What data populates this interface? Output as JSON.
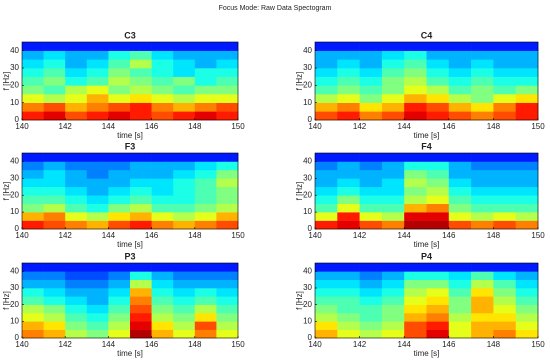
{
  "title": "Focus Mode: Raw Data Spectogram",
  "chart_data": [
    {
      "type": "heatmap",
      "title": "C3",
      "xlabel": "time [s]",
      "ylabel": "f [Hz]",
      "colormap": "jet",
      "xlim": [
        140,
        150
      ],
      "ylim": [
        0,
        45
      ],
      "xticks": [
        140,
        142,
        144,
        146,
        148,
        150
      ],
      "yticks": [
        0,
        10,
        20,
        30,
        40
      ],
      "x": [
        140.5,
        141.5,
        142.5,
        143.5,
        144.5,
        145.5,
        146.5,
        147.5,
        148.5,
        149.5
      ],
      "y": [
        2.5,
        7.5,
        12.5,
        17.5,
        22.5,
        27.5,
        32.5,
        37.5,
        42.5
      ],
      "values": [
        [
          0.85,
          0.9,
          0.8,
          0.85,
          0.9,
          0.85,
          0.8,
          0.85,
          0.9,
          0.85
        ],
        [
          0.75,
          0.8,
          0.7,
          0.75,
          0.8,
          0.85,
          0.75,
          0.7,
          0.75,
          0.8
        ],
        [
          0.6,
          0.55,
          0.6,
          0.7,
          0.6,
          0.65,
          0.6,
          0.55,
          0.6,
          0.6
        ],
        [
          0.5,
          0.45,
          0.55,
          0.6,
          0.5,
          0.55,
          0.5,
          0.45,
          0.5,
          0.5
        ],
        [
          0.45,
          0.5,
          0.4,
          0.45,
          0.55,
          0.5,
          0.45,
          0.5,
          0.4,
          0.45
        ],
        [
          0.4,
          0.45,
          0.35,
          0.4,
          0.5,
          0.45,
          0.4,
          0.35,
          0.4,
          0.4
        ],
        [
          0.35,
          0.4,
          0.3,
          0.35,
          0.45,
          0.55,
          0.4,
          0.35,
          0.3,
          0.35
        ],
        [
          0.3,
          0.35,
          0.3,
          0.3,
          0.4,
          0.45,
          0.35,
          0.3,
          0.3,
          0.3
        ],
        [
          0.15,
          0.15,
          0.15,
          0.15,
          0.15,
          0.15,
          0.15,
          0.15,
          0.15,
          0.15
        ]
      ]
    },
    {
      "type": "heatmap",
      "title": "C4",
      "xlabel": "time [s]",
      "ylabel": "f [Hz]",
      "colormap": "jet",
      "xlim": [
        140,
        150
      ],
      "ylim": [
        0,
        45
      ],
      "xticks": [
        140,
        142,
        144,
        146,
        148,
        150
      ],
      "yticks": [
        0,
        10,
        20,
        30,
        40
      ],
      "x": [
        140.5,
        141.5,
        142.5,
        143.5,
        144.5,
        145.5,
        146.5,
        147.5,
        148.5,
        149.5
      ],
      "y": [
        2.5,
        7.5,
        12.5,
        17.5,
        22.5,
        27.5,
        32.5,
        37.5,
        42.5
      ],
      "values": [
        [
          0.8,
          0.85,
          0.75,
          0.8,
          0.9,
          0.85,
          0.8,
          0.75,
          0.8,
          0.85
        ],
        [
          0.7,
          0.75,
          0.65,
          0.7,
          0.85,
          0.8,
          0.7,
          0.65,
          0.75,
          0.85
        ],
        [
          0.55,
          0.6,
          0.5,
          0.6,
          0.7,
          0.65,
          0.55,
          0.5,
          0.6,
          0.65
        ],
        [
          0.45,
          0.5,
          0.45,
          0.5,
          0.6,
          0.55,
          0.45,
          0.5,
          0.45,
          0.5
        ],
        [
          0.4,
          0.45,
          0.4,
          0.5,
          0.55,
          0.45,
          0.4,
          0.45,
          0.4,
          0.4
        ],
        [
          0.35,
          0.4,
          0.35,
          0.45,
          0.5,
          0.4,
          0.35,
          0.4,
          0.35,
          0.35
        ],
        [
          0.3,
          0.35,
          0.3,
          0.4,
          0.45,
          0.35,
          0.3,
          0.35,
          0.3,
          0.3
        ],
        [
          0.3,
          0.3,
          0.3,
          0.35,
          0.4,
          0.3,
          0.3,
          0.3,
          0.3,
          0.3
        ],
        [
          0.15,
          0.15,
          0.15,
          0.15,
          0.15,
          0.15,
          0.15,
          0.15,
          0.15,
          0.15
        ]
      ]
    },
    {
      "type": "heatmap",
      "title": "F3",
      "xlabel": "time [s]",
      "ylabel": "f [Hz]",
      "colormap": "jet",
      "xlim": [
        140,
        150
      ],
      "ylim": [
        0,
        45
      ],
      "xticks": [
        140,
        142,
        144,
        146,
        148,
        150
      ],
      "yticks": [
        0,
        10,
        20,
        30,
        40
      ],
      "x": [
        140.5,
        141.5,
        142.5,
        143.5,
        144.5,
        145.5,
        146.5,
        147.5,
        148.5,
        149.5
      ],
      "y": [
        2.5,
        7.5,
        12.5,
        17.5,
        22.5,
        27.5,
        32.5,
        37.5,
        42.5
      ],
      "values": [
        [
          0.85,
          0.8,
          0.75,
          0.7,
          0.8,
          0.85,
          0.75,
          0.7,
          0.75,
          0.8
        ],
        [
          0.7,
          0.75,
          0.6,
          0.55,
          0.65,
          0.7,
          0.6,
          0.55,
          0.6,
          0.7
        ],
        [
          0.5,
          0.55,
          0.45,
          0.4,
          0.5,
          0.55,
          0.45,
          0.45,
          0.5,
          0.55
        ],
        [
          0.45,
          0.45,
          0.4,
          0.35,
          0.4,
          0.45,
          0.4,
          0.4,
          0.45,
          0.5
        ],
        [
          0.4,
          0.4,
          0.35,
          0.3,
          0.35,
          0.4,
          0.35,
          0.4,
          0.45,
          0.5
        ],
        [
          0.35,
          0.35,
          0.3,
          0.3,
          0.3,
          0.35,
          0.35,
          0.4,
          0.45,
          0.55
        ],
        [
          0.3,
          0.35,
          0.3,
          0.25,
          0.3,
          0.3,
          0.3,
          0.35,
          0.4,
          0.5
        ],
        [
          0.25,
          0.3,
          0.25,
          0.25,
          0.25,
          0.3,
          0.3,
          0.3,
          0.35,
          0.4
        ],
        [
          0.15,
          0.15,
          0.15,
          0.15,
          0.15,
          0.15,
          0.15,
          0.15,
          0.15,
          0.15
        ]
      ]
    },
    {
      "type": "heatmap",
      "title": "F4",
      "xlabel": "time [s]",
      "ylabel": "f [Hz]",
      "colormap": "jet",
      "xlim": [
        140,
        150
      ],
      "ylim": [
        0,
        45
      ],
      "xticks": [
        140,
        142,
        144,
        146,
        148,
        150
      ],
      "yticks": [
        0,
        10,
        20,
        30,
        40
      ],
      "x": [
        140.5,
        141.5,
        142.5,
        143.5,
        144.5,
        145.5,
        146.5,
        147.5,
        148.5,
        149.5
      ],
      "y": [
        2.5,
        7.5,
        12.5,
        17.5,
        22.5,
        27.5,
        32.5,
        37.5,
        42.5
      ],
      "values": [
        [
          0.85,
          0.9,
          0.8,
          0.75,
          0.95,
          0.95,
          0.8,
          0.75,
          0.8,
          0.75
        ],
        [
          0.6,
          0.85,
          0.6,
          0.55,
          0.9,
          0.9,
          0.6,
          0.55,
          0.6,
          0.55
        ],
        [
          0.45,
          0.6,
          0.45,
          0.45,
          0.7,
          0.75,
          0.5,
          0.45,
          0.45,
          0.45
        ],
        [
          0.4,
          0.5,
          0.4,
          0.4,
          0.55,
          0.6,
          0.45,
          0.4,
          0.4,
          0.4
        ],
        [
          0.35,
          0.4,
          0.35,
          0.35,
          0.5,
          0.55,
          0.4,
          0.35,
          0.35,
          0.35
        ],
        [
          0.3,
          0.35,
          0.3,
          0.35,
          0.55,
          0.5,
          0.35,
          0.3,
          0.3,
          0.3
        ],
        [
          0.3,
          0.3,
          0.3,
          0.3,
          0.5,
          0.45,
          0.3,
          0.3,
          0.3,
          0.3
        ],
        [
          0.25,
          0.3,
          0.25,
          0.3,
          0.4,
          0.4,
          0.3,
          0.25,
          0.25,
          0.25
        ],
        [
          0.15,
          0.15,
          0.15,
          0.15,
          0.15,
          0.15,
          0.15,
          0.15,
          0.15,
          0.15
        ]
      ]
    },
    {
      "type": "heatmap",
      "title": "P3",
      "xlabel": "time [s]",
      "ylabel": "f [Hz]",
      "colormap": "jet",
      "xlim": [
        140,
        150
      ],
      "ylim": [
        0,
        45
      ],
      "xticks": [
        140,
        142,
        144,
        146,
        148,
        150
      ],
      "yticks": [
        0,
        10,
        20,
        30,
        40
      ],
      "x": [
        140.5,
        141.5,
        142.5,
        143.5,
        144.5,
        145.5,
        146.5,
        147.5,
        148.5,
        149.5
      ],
      "y": [
        2.5,
        7.5,
        12.5,
        17.5,
        22.5,
        27.5,
        32.5,
        37.5,
        42.5
      ],
      "values": [
        [
          0.75,
          0.7,
          0.55,
          0.5,
          0.6,
          0.95,
          0.7,
          0.6,
          0.75,
          0.6
        ],
        [
          0.7,
          0.65,
          0.5,
          0.45,
          0.55,
          0.9,
          0.65,
          0.55,
          0.8,
          0.55
        ],
        [
          0.6,
          0.55,
          0.45,
          0.4,
          0.5,
          0.85,
          0.55,
          0.5,
          0.65,
          0.5
        ],
        [
          0.55,
          0.5,
          0.4,
          0.35,
          0.45,
          0.8,
          0.5,
          0.45,
          0.55,
          0.45
        ],
        [
          0.45,
          0.4,
          0.35,
          0.3,
          0.4,
          0.75,
          0.45,
          0.4,
          0.45,
          0.4
        ],
        [
          0.4,
          0.35,
          0.3,
          0.3,
          0.35,
          0.7,
          0.4,
          0.35,
          0.4,
          0.35
        ],
        [
          0.3,
          0.3,
          0.25,
          0.25,
          0.3,
          0.55,
          0.35,
          0.3,
          0.3,
          0.3
        ],
        [
          0.25,
          0.25,
          0.2,
          0.2,
          0.25,
          0.4,
          0.3,
          0.25,
          0.25,
          0.25
        ],
        [
          0.15,
          0.15,
          0.15,
          0.15,
          0.15,
          0.15,
          0.15,
          0.15,
          0.15,
          0.15
        ]
      ]
    },
    {
      "type": "heatmap",
      "title": "P4",
      "xlabel": "time [s]",
      "ylabel": "f [Hz]",
      "colormap": "jet",
      "xlim": [
        140,
        150
      ],
      "ylim": [
        0,
        45
      ],
      "xticks": [
        140,
        142,
        144,
        146,
        148,
        150
      ],
      "yticks": [
        0,
        10,
        20,
        30,
        40
      ],
      "x": [
        140.5,
        141.5,
        142.5,
        143.5,
        144.5,
        145.5,
        146.5,
        147.5,
        148.5,
        149.5
      ],
      "y": [
        2.5,
        7.5,
        12.5,
        17.5,
        22.5,
        27.5,
        32.5,
        37.5,
        42.5
      ],
      "values": [
        [
          0.7,
          0.6,
          0.55,
          0.6,
          0.8,
          0.9,
          0.6,
          0.7,
          0.75,
          0.65
        ],
        [
          0.65,
          0.55,
          0.5,
          0.55,
          0.8,
          0.85,
          0.6,
          0.7,
          0.7,
          0.6
        ],
        [
          0.55,
          0.5,
          0.45,
          0.5,
          0.7,
          0.75,
          0.55,
          0.65,
          0.65,
          0.55
        ],
        [
          0.5,
          0.45,
          0.45,
          0.5,
          0.65,
          0.7,
          0.5,
          0.7,
          0.6,
          0.5
        ],
        [
          0.45,
          0.45,
          0.4,
          0.45,
          0.6,
          0.65,
          0.5,
          0.7,
          0.55,
          0.45
        ],
        [
          0.4,
          0.4,
          0.35,
          0.4,
          0.55,
          0.6,
          0.45,
          0.65,
          0.5,
          0.4
        ],
        [
          0.35,
          0.35,
          0.3,
          0.35,
          0.5,
          0.5,
          0.4,
          0.55,
          0.45,
          0.35
        ],
        [
          0.3,
          0.3,
          0.25,
          0.3,
          0.4,
          0.4,
          0.35,
          0.45,
          0.35,
          0.3
        ],
        [
          0.15,
          0.15,
          0.15,
          0.15,
          0.15,
          0.15,
          0.15,
          0.15,
          0.15,
          0.15
        ]
      ]
    }
  ]
}
